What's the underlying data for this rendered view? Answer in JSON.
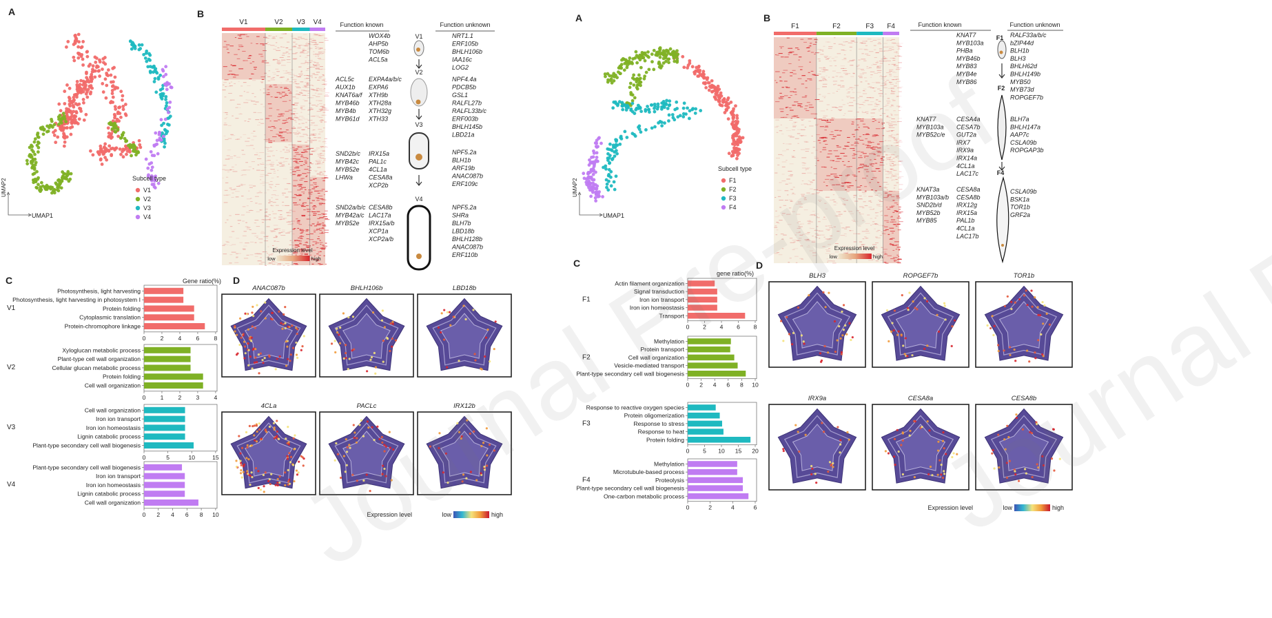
{
  "watermark": "Journal Pre-proof",
  "colors": {
    "c1": "#f16c6a",
    "c2": "#7fb125",
    "c3": "#1fb9c0",
    "c4": "#c07cf2",
    "heat_low": "#e9dcc5",
    "heat_high": "#d8262d",
    "violet": "#574a97"
  },
  "left": {
    "panelA": {
      "letter": "A",
      "axis_y": "UMAP2",
      "axis_x": "UMAP1",
      "legend_title": "Subcell type",
      "legend": [
        "V1",
        "V2",
        "V3",
        "V4"
      ]
    },
    "panelB": {
      "letter": "B",
      "columns": [
        "V1",
        "V2",
        "V3",
        "V4"
      ],
      "header_known": "Function known",
      "header_unknown": "Function unknown",
      "colorbar_title": "Expression  level",
      "low": "low",
      "high": "high",
      "stages": [
        "V1",
        "V2",
        "V3",
        "V4"
      ],
      "known1": [
        [
          "",
          "WOX4b"
        ],
        [
          "",
          "AHP5b"
        ],
        [
          "",
          "TOM6b"
        ],
        [
          "",
          "ACL5a"
        ]
      ],
      "known2": [
        [
          "ACL5c",
          "EXPA4a/b/c"
        ],
        [
          "AUX1b",
          "EXPA6"
        ],
        [
          "KNAT6a/f",
          "XTH9b"
        ],
        [
          "MYB46b",
          "XTH28a"
        ],
        [
          "MYB4b",
          "XTH32g"
        ],
        [
          "MYB61d",
          "XTH33"
        ]
      ],
      "known3": [
        [
          "SND2b/c",
          "IRX15a"
        ],
        [
          "MYB42c",
          "PAL1c"
        ],
        [
          "MYB52e",
          "4CL1a"
        ],
        [
          "LHWa",
          "CESA8a"
        ],
        [
          "",
          "XCP2b"
        ]
      ],
      "known4": [
        [
          "SND2a/b/c",
          "CESA8b"
        ],
        [
          "MYB42a/c",
          "LAC17a"
        ],
        [
          "MYB52e",
          "IRX15a/b"
        ],
        [
          "",
          "XCP1a"
        ],
        [
          "",
          "XCP2a/b"
        ]
      ],
      "unknown1": [
        "NRT1.1",
        "ERF105b",
        "BHLH106b",
        "IAA16c",
        "LOG2"
      ],
      "unknown2": [
        "NPF4.4a",
        "PDCB5b",
        "GSL1",
        "RALFL27b",
        "RALFL33b/c",
        "ERF003b",
        "BHLH145b",
        "LBD21a"
      ],
      "unknown3": [
        "NPF5.2a",
        "BLH1b",
        "ARF19b",
        "ANAC087b",
        "ERF109c"
      ],
      "unknown4": [
        "NPF5.2a",
        "SHRa",
        "BLH7b",
        "LBD18b",
        "BHLH128b",
        "ANAC087b",
        "ERF110b"
      ]
    },
    "panelC": {
      "letter": "C",
      "title": "Gene ratio(%)",
      "groups": [
        {
          "name": "V1",
          "color": "#f16c6a",
          "max": 8,
          "ticks": [
            "0",
            "2",
            "4",
            "6",
            "8"
          ],
          "terms": [
            "Photosynthesis, light harvesting",
            "Photosynthesis, light harvesting in photosystem I",
            "Protein folding",
            "Cytoplasmic translation",
            "Protein-chromophore linkage"
          ],
          "values": [
            4.4,
            4.4,
            5.6,
            5.6,
            6.8
          ]
        },
        {
          "name": "V2",
          "color": "#7fb125",
          "max": 4,
          "ticks": [
            "0",
            "1",
            "2",
            "3",
            "4"
          ],
          "terms": [
            "Xyloglucan metabolic process",
            "Plant-type cell wall organization",
            "Cellular glucan metabolic process",
            "Protein folding",
            "Cell wall organization"
          ],
          "values": [
            2.6,
            2.6,
            2.6,
            3.3,
            3.3
          ]
        },
        {
          "name": "V3",
          "color": "#1fb9c0",
          "max": 15,
          "ticks": [
            "0",
            "5",
            "10",
            "15"
          ],
          "terms": [
            "Cell wall organization",
            "Iron ion transport",
            "Iron ion homeostasis",
            "Lignin catabolic process",
            "Plant-type secondary cell wall biogenesis"
          ],
          "values": [
            8.6,
            8.6,
            8.6,
            8.6,
            10.4
          ]
        },
        {
          "name": "V4",
          "color": "#c07cf2",
          "max": 10,
          "ticks": [
            "0",
            "2",
            "4",
            "6",
            "8",
            "10"
          ],
          "terms": [
            "Plant-type secondary cell wall biogenesis",
            "Iron ion transport",
            "Iron ion homeostasis",
            "Lignin catabolic process",
            "Cell wall organization"
          ],
          "values": [
            5.3,
            5.7,
            5.7,
            5.7,
            7.6
          ]
        }
      ]
    },
    "panelD": {
      "letter": "D",
      "genes": [
        "ANAC087b",
        "BHLH106b",
        "LBD18b",
        "4CLa",
        "PACLc",
        "IRX12b"
      ],
      "colorbar_title": "Expression level",
      "low": "low",
      "high": "high"
    }
  },
  "right": {
    "panelA": {
      "letter": "A",
      "axis_y": "UMAP2",
      "axis_x": "UMAP1",
      "legend_title": "Subcell type",
      "legend": [
        "F1",
        "F2",
        "F3",
        "F4"
      ]
    },
    "panelB": {
      "letter": "B",
      "columns": [
        "F1",
        "F2",
        "F3",
        "F4"
      ],
      "header_known": "Function known",
      "header_unknown": "Function unknown",
      "colorbar_title": "Expression  level",
      "low": "low",
      "high": "high",
      "stages": [
        "F1",
        "F2",
        "F4"
      ],
      "known1": [
        [
          "",
          "KNAT7"
        ],
        [
          "",
          "MYB103a"
        ],
        [
          "",
          "PHBa"
        ],
        [
          "",
          "MYB46b"
        ],
        [
          "",
          "MYB83"
        ],
        [
          "",
          "MYB4e"
        ],
        [
          "",
          "MYB86"
        ]
      ],
      "known2": [
        [
          "KNAT7",
          "CESA4a"
        ],
        [
          "MYB103a",
          "CESA7b"
        ],
        [
          "MYB52c/e",
          "GUT2a"
        ],
        [
          "",
          "IRX7"
        ],
        [
          "",
          "IRX9a"
        ],
        [
          "",
          "IRX14a"
        ],
        [
          "",
          "4CL1a"
        ],
        [
          "",
          "LAC17c"
        ]
      ],
      "known3": [
        [
          "KNAT3a",
          "CESA8a"
        ],
        [
          "MYB103a/b",
          "CESA8b"
        ],
        [
          "SND2b/d",
          "IRX12g"
        ],
        [
          "MYB52b",
          "IRX15a"
        ],
        [
          "MYB85",
          "PAL1b"
        ],
        [
          "",
          "4CL1a"
        ],
        [
          "",
          "LAC17b"
        ]
      ],
      "unknown1": [
        "RALF33a/b/c",
        "bZIP44d",
        "BLH1b",
        "BLH3",
        "BHLH62d",
        "BHLH149b",
        "MYB50",
        "MYB73d",
        "ROPGEF7b"
      ],
      "unknown2": [
        "BLH7a",
        "BHLH147a",
        "AAP7c",
        "CSLA09b",
        "ROPGAP3b"
      ],
      "unknown3": [
        "CSLA09b",
        "BSK1a",
        "TOR1b",
        "GRF2a"
      ]
    },
    "panelC": {
      "letter": "C",
      "title": "gene ratio(%)",
      "groups": [
        {
          "name": "F1",
          "color": "#f16c6a",
          "max": 8,
          "ticks": [
            "0",
            "2",
            "4",
            "6",
            "8"
          ],
          "terms": [
            "Actin filament organization",
            "Signal transduction",
            "Iron ion transport",
            "Iron ion homeostasis",
            "Transport"
          ],
          "values": [
            3.2,
            3.5,
            3.5,
            3.5,
            6.8
          ]
        },
        {
          "name": "F2",
          "color": "#7fb125",
          "max": 10,
          "ticks": [
            "0",
            "2",
            "4",
            "6",
            "8",
            "10"
          ],
          "terms": [
            "Methylation",
            "Protein transport",
            "Cell wall organization",
            "Vesicle-mediated transport",
            "Plant-type secondary cell wall biogenesis"
          ],
          "values": [
            6.4,
            6.3,
            6.9,
            7.4,
            8.6
          ]
        },
        {
          "name": "F3",
          "color": "#1fb9c0",
          "max": 20,
          "ticks": [
            "0",
            "5",
            "10",
            "15",
            "20"
          ],
          "terms": [
            "Response to reactive oxygen species",
            "Protein oligomerization",
            "Response to stress",
            "Response to heat",
            "Protein folding"
          ],
          "values": [
            8.3,
            9.5,
            10.2,
            10.6,
            18.6
          ]
        },
        {
          "name": "F4",
          "color": "#c07cf2",
          "max": 6,
          "ticks": [
            "0",
            "2",
            "4",
            "6"
          ],
          "terms": [
            "Methylation",
            "Microtubule-based process",
            "Proteolysis",
            "Plant-type secondary cell wall biogenesis",
            "One-carbon metabolic process"
          ],
          "values": [
            4.4,
            4.4,
            4.9,
            4.9,
            5.4
          ]
        }
      ]
    },
    "panelD": {
      "letter": "D",
      "genes": [
        "BLH3",
        "ROPGEF7b",
        "TOR1b",
        "IRX9a",
        "CESA8a",
        "CESA8b"
      ],
      "colorbar_title": "Expression level",
      "low": "low",
      "high": "high"
    }
  }
}
